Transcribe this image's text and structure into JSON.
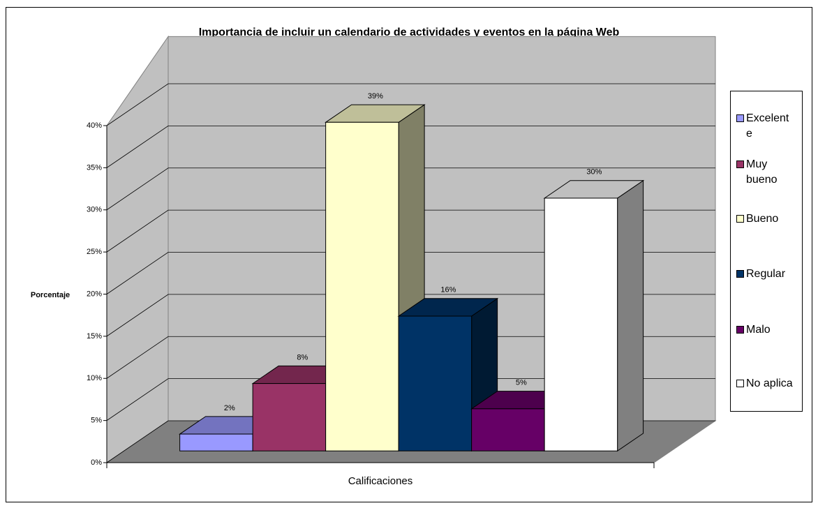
{
  "chart_data": {
    "type": "bar3d",
    "title": "Importancia de incluir un calendario de actividades y eventos en la página Web",
    "x_label": "Calificaciones",
    "y_label": "Porcentaje",
    "series": [
      {
        "name": "Excelente",
        "color": "#9999ff",
        "values": [
          2
        ],
        "value_labels": [
          "2%"
        ]
      },
      {
        "name": "Muy bueno",
        "color": "#993366",
        "values": [
          8
        ],
        "value_labels": [
          "8%"
        ]
      },
      {
        "name": "Bueno",
        "color": "#ffffcc",
        "values": [
          39
        ],
        "value_labels": [
          "39%"
        ]
      },
      {
        "name": "Regular",
        "color": "#003366",
        "values": [
          16
        ],
        "value_labels": [
          "16%"
        ]
      },
      {
        "name": "Malo",
        "color": "#660066",
        "values": [
          5
        ],
        "value_labels": [
          "5%"
        ]
      },
      {
        "name": "No aplica",
        "color": "#ffffff",
        "values": [
          30
        ],
        "value_labels": [
          "30%"
        ]
      }
    ],
    "ylim": [
      0,
      40
    ],
    "yticks": [
      {
        "value": 0,
        "label": "0%"
      },
      {
        "value": 5,
        "label": "5%"
      },
      {
        "value": 10,
        "label": "10%"
      },
      {
        "value": 15,
        "label": "15%"
      },
      {
        "value": 20,
        "label": "20%"
      },
      {
        "value": 25,
        "label": "25%"
      },
      {
        "value": 30,
        "label": "30%"
      },
      {
        "value": 35,
        "label": "35%"
      },
      {
        "value": 40,
        "label": "40%"
      }
    ],
    "grid": true,
    "legend": "right"
  }
}
